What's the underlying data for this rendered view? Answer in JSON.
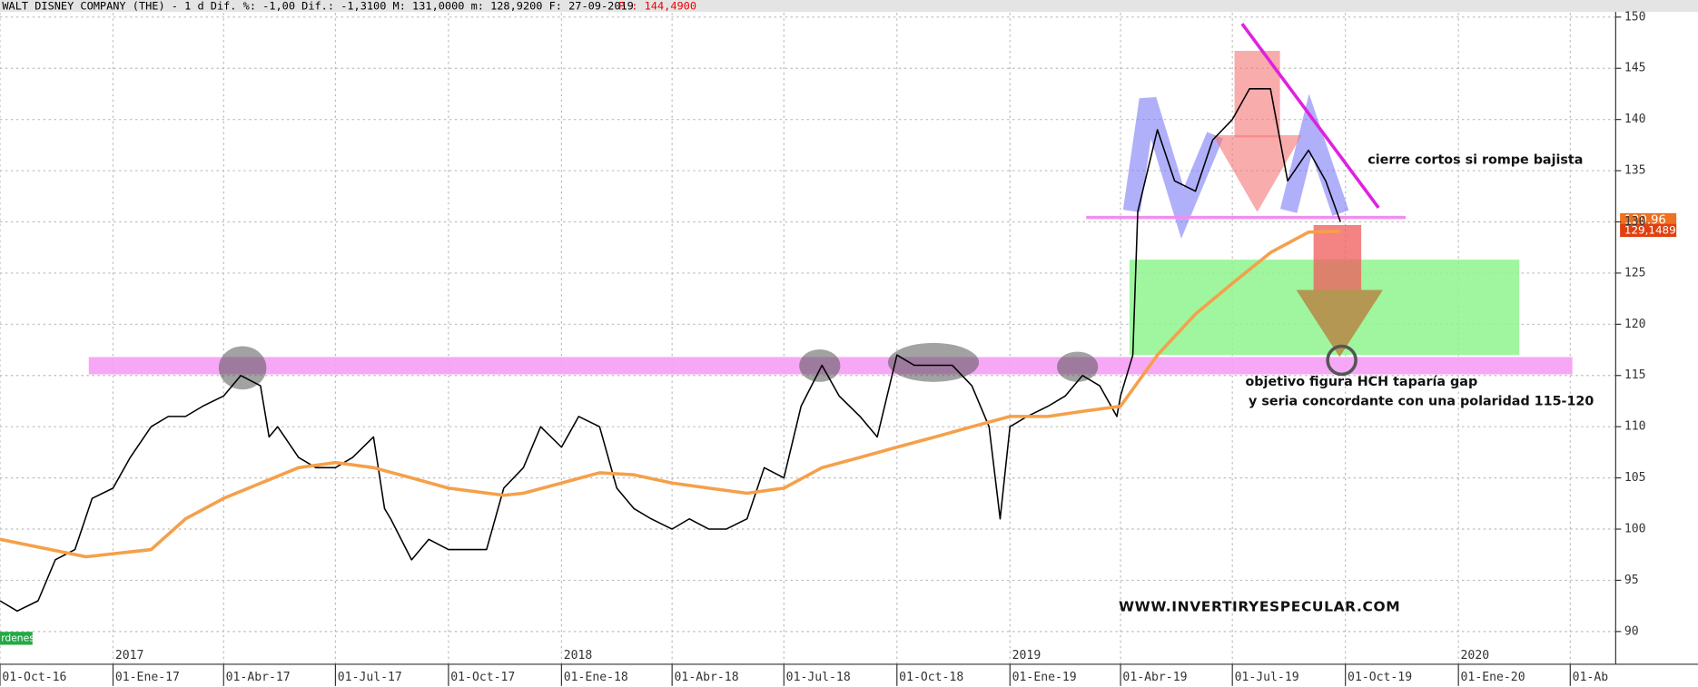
{
  "chart_data": {
    "type": "line",
    "title": "WALT DISNEY COMPANY (THE) -  1 d Dif. %: -1,00 Dif.: -1,3100 M: 131,0000 m: 128,9200 F: 27-09-2019",
    "subtitle": "P : 144,4900",
    "x": [
      "2016-10-01",
      "2016-10-15",
      "2016-11-01",
      "2016-11-15",
      "2016-12-01",
      "2016-12-15",
      "2017-01-01",
      "2017-01-15",
      "2017-02-01",
      "2017-02-15",
      "2017-03-01",
      "2017-03-15",
      "2017-04-01",
      "2017-04-15",
      "2017-05-01",
      "2017-05-08",
      "2017-05-15",
      "2017-06-01",
      "2017-06-15",
      "2017-07-01",
      "2017-07-15",
      "2017-08-01",
      "2017-08-10",
      "2017-08-15",
      "2017-09-01",
      "2017-09-15",
      "2017-10-01",
      "2017-10-15",
      "2017-11-01",
      "2017-11-15",
      "2017-12-01",
      "2017-12-15",
      "2018-01-01",
      "2018-01-15",
      "2018-02-01",
      "2018-02-15",
      "2018-03-01",
      "2018-03-15",
      "2018-04-01",
      "2018-04-15",
      "2018-05-01",
      "2018-05-15",
      "2018-06-01",
      "2018-06-15",
      "2018-07-01",
      "2018-07-15",
      "2018-08-01",
      "2018-08-15",
      "2018-09-01",
      "2018-09-15",
      "2018-10-01",
      "2018-10-15",
      "2018-11-01",
      "2018-11-15",
      "2018-12-01",
      "2018-12-15",
      "2018-12-24",
      "2019-01-01",
      "2019-01-15",
      "2019-02-01",
      "2019-02-15",
      "2019-03-01",
      "2019-03-15",
      "2019-03-29",
      "2019-04-01",
      "2019-04-11",
      "2019-04-15",
      "2019-05-01",
      "2019-05-15",
      "2019-06-01",
      "2019-06-15",
      "2019-07-01",
      "2019-07-15",
      "2019-08-01",
      "2019-08-15",
      "2019-09-01",
      "2019-09-15",
      "2019-09-27"
    ],
    "series": [
      {
        "name": "Cierre",
        "color": "#000000",
        "values": [
          93,
          92,
          93,
          97,
          98,
          103,
          104,
          107,
          110,
          111,
          111,
          112,
          113,
          115,
          114,
          109,
          110,
          107,
          106,
          106,
          107,
          109,
          102,
          101,
          97,
          99,
          98,
          98,
          98,
          104,
          106,
          110,
          108,
          111,
          110,
          104,
          102,
          101,
          100,
          101,
          100,
          100,
          101,
          106,
          105,
          112,
          116,
          113,
          111,
          109,
          117,
          116,
          116,
          116,
          114,
          110,
          101,
          110,
          111,
          112,
          113,
          115,
          114,
          111,
          113,
          117,
          131,
          139,
          134,
          133,
          138,
          140,
          143,
          143,
          134,
          137,
          134,
          130
        ]
      },
      {
        "name": "Media",
        "color": "#f5a04a",
        "x": [
          "2016-10-01",
          "2016-12-10",
          "2017-02-01",
          "2017-03-01",
          "2017-04-01",
          "2017-06-01",
          "2017-07-01",
          "2017-08-01",
          "2017-09-01",
          "2017-10-01",
          "2017-11-15",
          "2017-12-01",
          "2018-01-01",
          "2018-02-01",
          "2018-03-01",
          "2018-04-01",
          "2018-05-01",
          "2018-06-01",
          "2018-07-01",
          "2018-08-01",
          "2018-09-01",
          "2018-10-01",
          "2018-11-01",
          "2018-12-01",
          "2019-01-01",
          "2019-02-01",
          "2019-03-01",
          "2019-04-01",
          "2019-05-01",
          "2019-06-01",
          "2019-07-01",
          "2019-08-01",
          "2019-09-01",
          "2019-09-27"
        ],
        "values": [
          99,
          97.3,
          98,
          101,
          103,
          106,
          106.5,
          106,
          105,
          104,
          103.3,
          103.5,
          104.5,
          105.5,
          105.3,
          104.5,
          104,
          103.5,
          104,
          106,
          107,
          108,
          109,
          110,
          111,
          111,
          111.5,
          112,
          117,
          121,
          124,
          127,
          129,
          129.1
        ]
      }
    ],
    "xlim": [
      "2016-10-01",
      "2020-05-08"
    ],
    "xticks": [
      {
        "value": "2016-10-01",
        "label": "01-Oct-16"
      },
      {
        "value": "2017-01-01",
        "label": "01-Ene-17"
      },
      {
        "value": "2017-04-01",
        "label": "01-Abr-17"
      },
      {
        "value": "2017-07-01",
        "label": "01-Jul-17"
      },
      {
        "value": "2017-10-01",
        "label": "01-Oct-17"
      },
      {
        "value": "2018-01-01",
        "label": "01-Ene-18"
      },
      {
        "value": "2018-04-01",
        "label": "01-Abr-18"
      },
      {
        "value": "2018-07-01",
        "label": "01-Jul-18"
      },
      {
        "value": "2018-10-01",
        "label": "01-Oct-18"
      },
      {
        "value": "2019-01-01",
        "label": "01-Ene-19"
      },
      {
        "value": "2019-04-01",
        "label": "01-Abr-19"
      },
      {
        "value": "2019-07-01",
        "label": "01-Jul-19"
      },
      {
        "value": "2019-10-01",
        "label": "01-Oct-19"
      },
      {
        "value": "2020-01-01",
        "label": "01-Ene-20"
      },
      {
        "value": "2020-04-01",
        "label": "01-Ab"
      }
    ],
    "year_ticks": [
      {
        "value": "2017-01-01",
        "label": "2017"
      },
      {
        "value": "2018-01-01",
        "label": "2018"
      },
      {
        "value": "2019-01-01",
        "label": "2019"
      },
      {
        "value": "2020-01-01",
        "label": "2020"
      }
    ],
    "ylim": [
      86.8,
      150.4
    ],
    "yticks": [
      90,
      95,
      100,
      105,
      110,
      115,
      120,
      125,
      130,
      135,
      140,
      145,
      150
    ],
    "grid": true,
    "annotations": {
      "note1": "cierre   cortos si rompe bajista",
      "note2": "objetivo figura HCH taparía  gap",
      "note3": "y seria concordante con una polaridad 115-120",
      "site": "WWW.INVERTIRYESPECULAR.COM",
      "last_price": "129,96",
      "avg_price": "129,1489",
      "badge": "rdenes"
    }
  }
}
